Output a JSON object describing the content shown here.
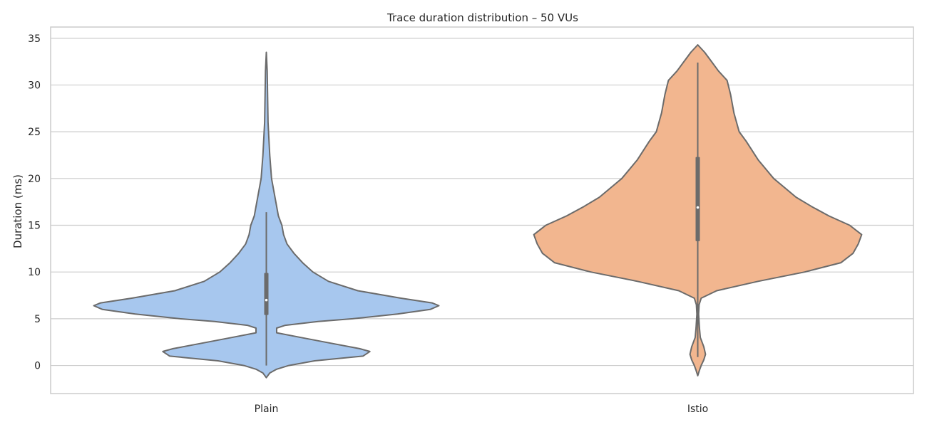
{
  "chart_data": {
    "type": "violin",
    "title": "Trace duration distribution – 50 VUs",
    "xlabel": "",
    "ylabel": "Duration (ms)",
    "categories": [
      "Plain",
      "Istio"
    ],
    "ylim": [
      -3,
      36.2
    ],
    "yticks": [
      0,
      5,
      10,
      15,
      20,
      25,
      30,
      35
    ],
    "grid": true,
    "legend": "none",
    "colors": {
      "Plain": "#a7c7ee",
      "Istio": "#f2b68f",
      "outline": "#6b6b6b",
      "grid": "#cccccc"
    },
    "violins": [
      {
        "name": "Plain",
        "fill": "#a7c7ee",
        "median": 7.0,
        "q1": 5.4,
        "q3": 9.9,
        "whisker_low": 0.0,
        "whisker_high": 16.4,
        "profile": [
          [
            -1.3,
            0.0
          ],
          [
            -0.8,
            0.02
          ],
          [
            -0.4,
            0.06
          ],
          [
            0.0,
            0.13
          ],
          [
            0.5,
            0.28
          ],
          [
            1.0,
            0.56
          ],
          [
            1.5,
            0.6
          ],
          [
            1.8,
            0.54
          ],
          [
            2.5,
            0.34
          ],
          [
            3.0,
            0.2
          ],
          [
            3.5,
            0.06
          ],
          [
            4.0,
            0.06
          ],
          [
            4.3,
            0.11
          ],
          [
            4.7,
            0.3
          ],
          [
            5.0,
            0.5
          ],
          [
            5.5,
            0.76
          ],
          [
            6.0,
            0.95
          ],
          [
            6.4,
            1.0
          ],
          [
            6.7,
            0.96
          ],
          [
            7.2,
            0.78
          ],
          [
            8.0,
            0.53
          ],
          [
            9.0,
            0.36
          ],
          [
            10.0,
            0.27
          ],
          [
            11.0,
            0.21
          ],
          [
            12.0,
            0.16
          ],
          [
            13.0,
            0.12
          ],
          [
            14.0,
            0.1
          ],
          [
            15.0,
            0.09
          ],
          [
            16.0,
            0.07
          ],
          [
            17.0,
            0.06
          ],
          [
            18.0,
            0.05
          ],
          [
            20.0,
            0.03
          ],
          [
            22.5,
            0.02
          ],
          [
            26.0,
            0.01
          ],
          [
            31.5,
            0.005
          ],
          [
            33.5,
            0.0
          ]
        ]
      },
      {
        "name": "Istio",
        "fill": "#f2b68f",
        "median": 16.9,
        "q1": 13.3,
        "q3": 22.3,
        "whisker_low": 0.9,
        "whisker_high": 32.4,
        "profile": [
          [
            -1.1,
            0.0
          ],
          [
            -0.5,
            0.01
          ],
          [
            0.0,
            0.02
          ],
          [
            0.6,
            0.035
          ],
          [
            1.2,
            0.045
          ],
          [
            2.0,
            0.035
          ],
          [
            3.0,
            0.015
          ],
          [
            4.0,
            0.01
          ],
          [
            5.5,
            0.005
          ],
          [
            6.5,
            0.008
          ],
          [
            7.2,
            0.02
          ],
          [
            8.0,
            0.11
          ],
          [
            9.0,
            0.35
          ],
          [
            10.0,
            0.62
          ],
          [
            11.0,
            0.83
          ],
          [
            12.0,
            0.9
          ],
          [
            13.0,
            0.93
          ],
          [
            14.0,
            0.95
          ],
          [
            15.0,
            0.88
          ],
          [
            16.0,
            0.76
          ],
          [
            17.0,
            0.66
          ],
          [
            18.0,
            0.57
          ],
          [
            20.0,
            0.44
          ],
          [
            22.0,
            0.35
          ],
          [
            24.0,
            0.28
          ],
          [
            25.0,
            0.24
          ],
          [
            27.0,
            0.21
          ],
          [
            29.0,
            0.19
          ],
          [
            30.5,
            0.17
          ],
          [
            31.5,
            0.12
          ],
          [
            32.5,
            0.08
          ],
          [
            33.5,
            0.04
          ],
          [
            34.3,
            0.0
          ]
        ]
      }
    ]
  }
}
